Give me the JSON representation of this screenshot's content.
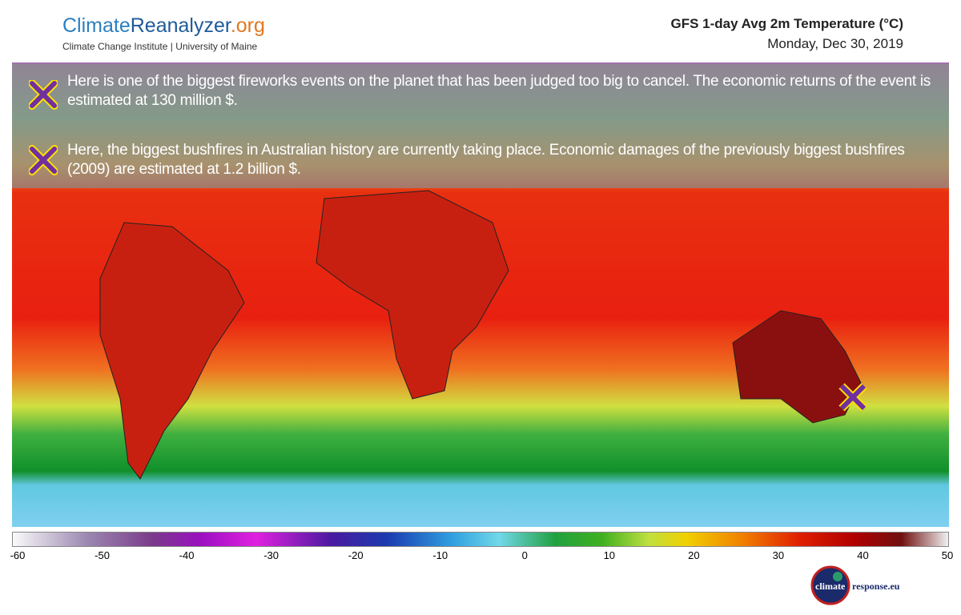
{
  "header": {
    "site": [
      "Climate",
      "Reanalyzer",
      ".org"
    ],
    "institute": "Climate Change Institute | University of Maine",
    "product": "GFS 1-day Avg 2m Temperature (°C)",
    "date": "Monday, Dec 30, 2019"
  },
  "annotations": [
    "Here is one of the biggest fireworks events on the planet that has been judged too big to cancel. The economic returns of the event is estimated at 130 million $.",
    "Here, the biggest bushfires in Australian history are currently taking place. Economic damages of the previously biggest bushfires (2009) are estimated at 1.2 billion  $."
  ],
  "colorbar": {
    "lim": [
      -60,
      50
    ],
    "ticks": [
      -60,
      -50,
      -40,
      -30,
      -20,
      -10,
      0,
      10,
      20,
      30,
      40,
      50
    ]
  },
  "badge": {
    "left": "climate",
    "right": "response.eu"
  }
}
